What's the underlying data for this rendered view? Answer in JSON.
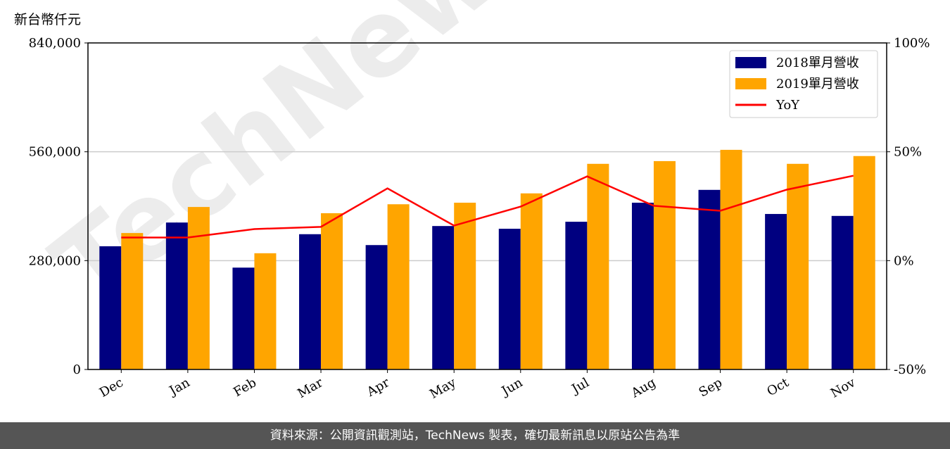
{
  "chart_data": {
    "type": "bar-line",
    "y_label": "新台幣仟元",
    "watermark": "TechNews",
    "footer": "資料來源：公開資訊觀測站，TechNews 製表，確切最新訊息以原站公告為準",
    "categories": [
      "Dec",
      "Jan",
      "Feb",
      "Mar",
      "Apr",
      "May",
      "Jun",
      "Jul",
      "Aug",
      "Sep",
      "Oct",
      "Nov"
    ],
    "series": [
      {
        "name": "2018單月營收",
        "color": "#000080",
        "kind": "bar",
        "values": [
          317000,
          378000,
          262000,
          348000,
          320000,
          369000,
          362000,
          380000,
          429000,
          462000,
          400000,
          395000
        ]
      },
      {
        "name": "2019單月營收",
        "color": "#ffa500",
        "kind": "bar",
        "values": [
          351000,
          418000,
          299000,
          402000,
          425000,
          429000,
          453000,
          529000,
          536000,
          565000,
          529000,
          549000
        ]
      },
      {
        "name": "YoY",
        "color": "#ff0000",
        "kind": "line",
        "axis": "y2",
        "values": [
          10.6,
          10.6,
          14.5,
          15.5,
          33.2,
          16.1,
          24.8,
          38.7,
          25.2,
          22.9,
          32.6,
          39
        ]
      }
    ],
    "ylim": [
      0,
      840000
    ],
    "yticks": [
      0,
      {
        "value": 280000,
        "label": "280,000"
      },
      {
        "value": 560000,
        "label": "560,000"
      },
      {
        "value": 840000,
        "label": "840,000"
      }
    ],
    "y2lim": [
      -50,
      100
    ],
    "y2ticks": [
      {
        "value": -50,
        "label": "-50%"
      },
      {
        "value": 0,
        "label": "0%"
      },
      {
        "value": 50,
        "label": "50%"
      },
      {
        "value": 100,
        "label": "100%"
      }
    ],
    "grid": true,
    "legend": "upper right"
  }
}
